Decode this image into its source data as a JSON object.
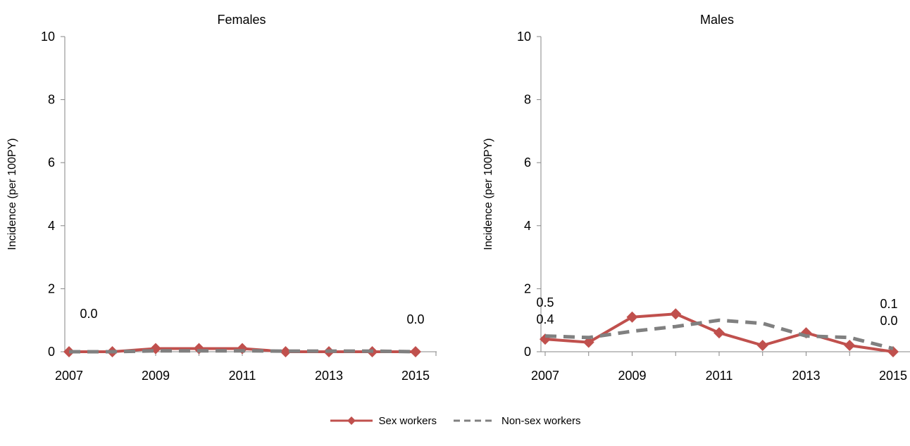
{
  "chart_data": [
    {
      "type": "line",
      "title": "Females",
      "xlabel": "",
      "ylabel": "Incidence (per 100PY)",
      "x": [
        2007,
        2008,
        2009,
        2010,
        2011,
        2012,
        2013,
        2014,
        2015
      ],
      "x_tick_labels": [
        "2007",
        "2009",
        "2011",
        "2013",
        "2015"
      ],
      "y_tick_labels": [
        "0",
        "2",
        "4",
        "6",
        "8",
        "10"
      ],
      "ylim": [
        0,
        10
      ],
      "grid": false,
      "series": [
        {
          "name": "Sex workers",
          "values": [
            0.0,
            0.0,
            0.1,
            0.1,
            0.1,
            0.0,
            0.0,
            0.0,
            0.0
          ],
          "color": "#C0504D",
          "style": "solid",
          "marker": "diamond"
        },
        {
          "name": "Non-sex workers",
          "values": [
            0.0,
            0.0,
            0.03,
            0.03,
            0.03,
            0.02,
            0.02,
            0.02,
            0.0
          ],
          "color": "#808080",
          "style": "dashed",
          "marker": "none"
        }
      ],
      "annotations": [
        {
          "text": "0.0",
          "x": 2007,
          "position": "above"
        },
        {
          "text": "0.0",
          "x": 2015,
          "position": "above"
        }
      ]
    },
    {
      "type": "line",
      "title": "Males",
      "xlabel": "",
      "ylabel": "Incidence (per 100PY)",
      "x": [
        2007,
        2008,
        2009,
        2010,
        2011,
        2012,
        2013,
        2014,
        2015
      ],
      "x_tick_labels": [
        "2007",
        "2009",
        "2011",
        "2013",
        "2015"
      ],
      "y_tick_labels": [
        "0",
        "2",
        "4",
        "6",
        "8",
        "10"
      ],
      "ylim": [
        0,
        10
      ],
      "grid": false,
      "series": [
        {
          "name": "Sex workers",
          "values": [
            0.4,
            0.3,
            1.1,
            1.2,
            0.6,
            0.2,
            0.6,
            0.2,
            0.0
          ],
          "color": "#C0504D",
          "style": "solid",
          "marker": "diamond"
        },
        {
          "name": "Non-sex workers",
          "values": [
            0.5,
            0.45,
            0.65,
            0.8,
            1.0,
            0.9,
            0.5,
            0.45,
            0.1
          ],
          "color": "#808080",
          "style": "dashed",
          "marker": "none"
        }
      ],
      "annotations": [
        {
          "text": "0.5",
          "x": 2007,
          "position": "above"
        },
        {
          "text": "0.4",
          "x": 2007,
          "position": "above"
        },
        {
          "text": "0.1",
          "x": 2015,
          "position": "above"
        },
        {
          "text": "0.0",
          "x": 2015,
          "position": "above"
        }
      ]
    }
  ],
  "legend": {
    "placement": "bottom-center",
    "items": [
      {
        "label": "Sex workers",
        "color": "#C0504D",
        "style": "solid",
        "marker": "diamond"
      },
      {
        "label": "Non-sex workers",
        "color": "#808080",
        "style": "dashed",
        "marker": "none"
      }
    ]
  }
}
